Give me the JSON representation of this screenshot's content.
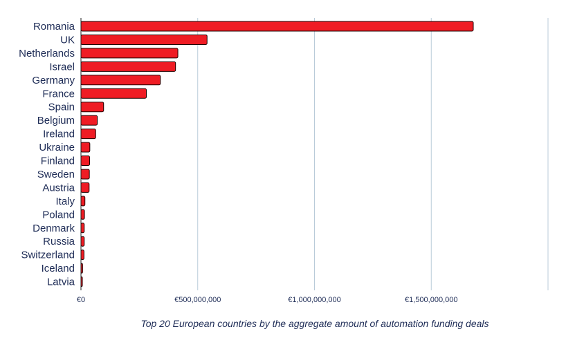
{
  "chart_data": {
    "type": "bar",
    "orientation": "horizontal",
    "categories": [
      "Romania",
      "UK",
      "Netherlands",
      "Israel",
      "Germany",
      "France",
      "Spain",
      "Belgium",
      "Ireland",
      "Ukraine",
      "Finland",
      "Sweden",
      "Austria",
      "Italy",
      "Poland",
      "Denmark",
      "Russia",
      "Switzerland",
      "Iceland",
      "Latvia"
    ],
    "values": [
      1680000000,
      540000000,
      415000000,
      405000000,
      340000000,
      280000000,
      97000000,
      70000000,
      63000000,
      38000000,
      37000000,
      36000000,
      35000000,
      17000000,
      15000000,
      14000000,
      14000000,
      13000000,
      7000000,
      6000000
    ],
    "xlim": [
      0,
      2000000000
    ],
    "x_ticks": [
      0,
      500000000,
      1000000000,
      1500000000
    ],
    "x_tick_labels": [
      "€0",
      "€500,000,000",
      "€1,000,000,000",
      "€1,500,000,000"
    ],
    "grid": "vertical",
    "bar_color": "#ef1c24",
    "caption": "Top 20 European countries by the aggregate amount of automation funding deals"
  }
}
